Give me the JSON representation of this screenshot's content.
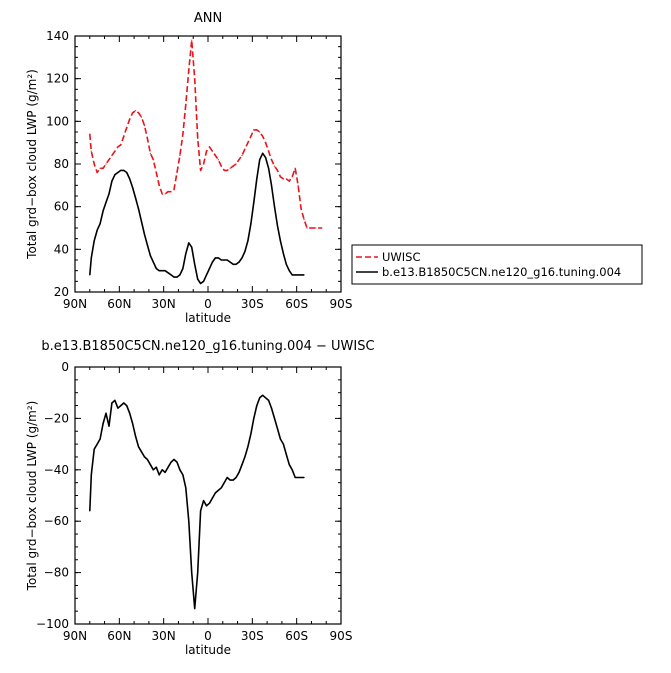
{
  "chart_data": [
    {
      "type": "line",
      "title": "ANN",
      "xlabel": "latitude",
      "ylabel": "Total grd−box cloud LWP (g/m²)",
      "xlim": [
        90,
        -90
      ],
      "ylim": [
        20,
        140
      ],
      "xticks": [
        90,
        60,
        30,
        0,
        -30,
        -60,
        -90
      ],
      "xtick_labels": [
        "90N",
        "60N",
        "30N",
        "0",
        "30S",
        "60S",
        "90S"
      ],
      "yticks": [
        20,
        40,
        60,
        80,
        100,
        120,
        140
      ],
      "ytick_labels": [
        "20",
        "40",
        "60",
        "80",
        "100",
        "120",
        "140"
      ],
      "legend_placement": "right of plot",
      "series": [
        {
          "name": "UWISC",
          "color": "#e8141c",
          "dash": "dashed",
          "x": [
            80,
            79,
            77,
            75,
            73,
            71,
            69,
            67,
            65,
            63,
            61,
            59,
            57,
            55,
            53,
            51,
            49,
            47,
            45,
            43,
            41,
            39,
            37,
            35,
            33,
            31,
            29,
            27,
            25,
            23,
            21,
            19,
            17,
            15,
            13,
            11,
            9,
            7,
            5,
            3,
            1,
            -1,
            -3,
            -5,
            -7,
            -9,
            -11,
            -13,
            -15,
            -17,
            -19,
            -21,
            -23,
            -25,
            -27,
            -29,
            -31,
            -33,
            -35,
            -37,
            -39,
            -41,
            -43,
            -45,
            -47,
            -49,
            -51,
            -53,
            -55,
            -57,
            -59,
            -61,
            -63,
            -65,
            -67,
            -69,
            -71,
            -73,
            -75,
            -77
          ],
          "y": [
            94,
            86,
            80,
            76,
            78,
            78,
            80,
            82,
            84,
            86,
            88,
            89,
            93,
            97,
            101,
            104,
            105,
            104,
            102,
            98,
            92,
            85,
            82,
            76,
            70,
            66,
            66,
            67,
            67,
            68,
            76,
            84,
            94,
            108,
            124,
            138,
            120,
            92,
            77,
            80,
            86,
            88,
            86,
            84,
            82,
            79,
            77,
            77,
            78,
            79,
            80,
            82,
            84,
            87,
            90,
            93,
            96,
            96,
            95,
            93,
            90,
            86,
            82,
            79,
            77,
            74,
            73,
            73,
            72,
            74,
            78,
            70,
            59,
            54,
            50,
            50,
            50,
            50,
            50,
            50
          ]
        },
        {
          "name": "b.e13.B1850C5CN.ne120_g16.tuning.004",
          "color": "#000000",
          "dash": "solid",
          "x": [
            80,
            79,
            77,
            75,
            73,
            71,
            69,
            67,
            65,
            63,
            61,
            59,
            57,
            55,
            53,
            51,
            49,
            47,
            45,
            43,
            41,
            39,
            37,
            35,
            33,
            31,
            29,
            27,
            25,
            23,
            21,
            19,
            17,
            15,
            13,
            11,
            9,
            7,
            5,
            3,
            1,
            -1,
            -3,
            -5,
            -7,
            -9,
            -11,
            -13,
            -15,
            -17,
            -19,
            -21,
            -23,
            -25,
            -27,
            -29,
            -31,
            -33,
            -35,
            -37,
            -39,
            -41,
            -43,
            -45,
            -47,
            -49,
            -51,
            -53,
            -55,
            -57,
            -59,
            -61,
            -63,
            -65
          ],
          "y": [
            28,
            36,
            44,
            49,
            52,
            58,
            62,
            66,
            72,
            75,
            76,
            77,
            77,
            76,
            73,
            69,
            64,
            59,
            53,
            47,
            42,
            37,
            34,
            31,
            30,
            30,
            30,
            29,
            28,
            27,
            27,
            28,
            31,
            38,
            43,
            41,
            33,
            26,
            24,
            25,
            28,
            31,
            34,
            36,
            36,
            35,
            35,
            35,
            34,
            33,
            33,
            34,
            36,
            39,
            44,
            52,
            62,
            73,
            82,
            85,
            83,
            78,
            70,
            60,
            51,
            44,
            38,
            33,
            30,
            28,
            28,
            28,
            28,
            28
          ]
        }
      ]
    },
    {
      "type": "line",
      "title": "b.e13.B1850C5CN.ne120_g16.tuning.004 − UWISC",
      "xlabel": "latitude",
      "ylabel": "Total grd−box cloud LWP (g/m²)",
      "xlim": [
        90,
        -90
      ],
      "ylim": [
        -100,
        0
      ],
      "xticks": [
        90,
        60,
        30,
        0,
        -30,
        -60,
        -90
      ],
      "xtick_labels": [
        "90N",
        "60N",
        "30N",
        "0",
        "30S",
        "60S",
        "90S"
      ],
      "yticks": [
        -100,
        -80,
        -60,
        -40,
        -20,
        0
      ],
      "ytick_labels": [
        "−100",
        "−80",
        "−60",
        "−40",
        "−20",
        "0"
      ],
      "series": [
        {
          "color": "#000000",
          "dash": "solid",
          "x": [
            80,
            79,
            77,
            75,
            73,
            71,
            69,
            67,
            65,
            63,
            61,
            59,
            57,
            55,
            53,
            51,
            49,
            47,
            45,
            43,
            41,
            39,
            37,
            35,
            33,
            31,
            29,
            27,
            25,
            23,
            21,
            19,
            17,
            15,
            13,
            11,
            9,
            7,
            5,
            3,
            1,
            -1,
            -3,
            -5,
            -7,
            -9,
            -11,
            -13,
            -15,
            -17,
            -19,
            -21,
            -23,
            -25,
            -27,
            -29,
            -31,
            -33,
            -35,
            -37,
            -39,
            -41,
            -43,
            -45,
            -47,
            -49,
            -51,
            -53,
            -55,
            -57,
            -59,
            -61,
            -63,
            -65
          ],
          "y": [
            -56,
            -42,
            -32,
            -30,
            -28,
            -22,
            -18,
            -23,
            -14,
            -13,
            -16,
            -15,
            -14,
            -15,
            -18,
            -22,
            -27,
            -31,
            -33,
            -35,
            -36,
            -38,
            -40,
            -39,
            -42,
            -40,
            -41,
            -39,
            -37,
            -36,
            -37,
            -40,
            -42,
            -47,
            -60,
            -80,
            -94,
            -80,
            -56,
            -52,
            -54,
            -53,
            -51,
            -49,
            -48,
            -47,
            -45,
            -43,
            -44,
            -44,
            -43,
            -41,
            -38,
            -35,
            -31,
            -26,
            -20,
            -15,
            -12,
            -11,
            -12,
            -13,
            -16,
            -20,
            -24,
            -28,
            -30,
            -34,
            -38,
            -40,
            -43,
            -43,
            -43,
            -43
          ]
        }
      ]
    }
  ]
}
